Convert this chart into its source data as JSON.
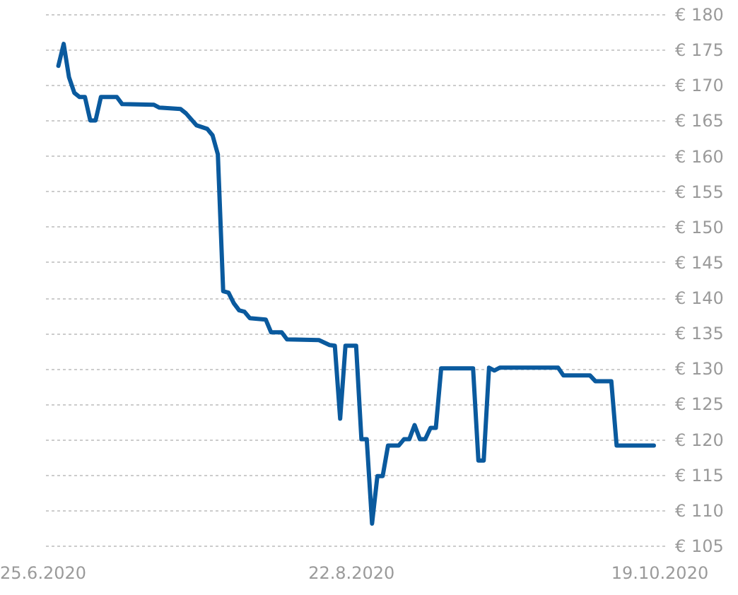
{
  "chart_data": {
    "type": "line",
    "x": [
      "2020-06-28",
      "2020-06-29",
      "2020-06-30",
      "2020-07-01",
      "2020-07-02",
      "2020-07-03",
      "2020-07-04",
      "2020-07-05",
      "2020-07-06",
      "2020-07-09",
      "2020-07-10",
      "2020-07-16",
      "2020-07-17",
      "2020-07-21",
      "2020-07-22",
      "2020-07-24",
      "2020-07-26",
      "2020-07-27",
      "2020-07-28",
      "2020-07-29",
      "2020-07-30",
      "2020-07-31",
      "2020-08-01",
      "2020-08-02",
      "2020-08-03",
      "2020-08-06",
      "2020-08-07",
      "2020-08-09",
      "2020-08-10",
      "2020-08-16",
      "2020-08-18",
      "2020-08-19",
      "2020-08-20",
      "2020-08-21",
      "2020-08-23",
      "2020-08-24",
      "2020-08-25",
      "2020-08-26",
      "2020-08-27",
      "2020-08-28",
      "2020-08-29",
      "2020-08-31",
      "2020-09-01",
      "2020-09-02",
      "2020-09-03",
      "2020-09-04",
      "2020-09-05",
      "2020-09-06",
      "2020-09-07",
      "2020-09-08",
      "2020-09-14",
      "2020-09-15",
      "2020-09-16",
      "2020-09-17",
      "2020-09-18",
      "2020-09-19",
      "2020-09-30",
      "2020-10-01",
      "2020-10-02",
      "2020-10-06",
      "2020-10-07",
      "2020-10-10",
      "2020-10-11",
      "2020-10-18"
    ],
    "series": [
      {
        "color": "#0a5a9e",
        "values": [
          172.7,
          175.8,
          171.1,
          168.9,
          168.3,
          168.3,
          165.0,
          165.0,
          168.3,
          168.3,
          167.3,
          167.2,
          166.8,
          166.6,
          166.0,
          164.3,
          163.8,
          162.9,
          160.2,
          140.9,
          140.7,
          139.2,
          138.2,
          138.0,
          137.1,
          136.9,
          135.1,
          135.1,
          134.1,
          134.0,
          133.3,
          133.2,
          122.9,
          133.2,
          133.2,
          120.0,
          120.0,
          108.1,
          114.8,
          114.8,
          119.1,
          119.1,
          120.0,
          120.0,
          122.0,
          120.0,
          120.0,
          121.6,
          121.6,
          130.0,
          130.0,
          117.0,
          117.0,
          130.1,
          129.7,
          130.1,
          130.1,
          129.0,
          129.0,
          129.0,
          128.2,
          128.2,
          119.1,
          119.1
        ]
      }
    ],
    "xlim": [
      "2020-06-25",
      "2020-10-20"
    ],
    "xticks": [
      {
        "value": "2020-06-25",
        "label": "25.6.2020"
      },
      {
        "value": "2020-08-22",
        "label": "22.8.2020"
      },
      {
        "value": "2020-10-19",
        "label": "19.10.2020"
      }
    ],
    "ylim": [
      105,
      180
    ],
    "yticks": [
      {
        "value": 105,
        "label": "€ 105"
      },
      {
        "value": 110,
        "label": "€ 110"
      },
      {
        "value": 115,
        "label": "€ 115"
      },
      {
        "value": 120,
        "label": "€ 120"
      },
      {
        "value": 125,
        "label": "€ 125"
      },
      {
        "value": 130,
        "label": "€ 130"
      },
      {
        "value": 135,
        "label": "€ 135"
      },
      {
        "value": 140,
        "label": "€ 140"
      },
      {
        "value": 145,
        "label": "€ 145"
      },
      {
        "value": 150,
        "label": "€ 150"
      },
      {
        "value": 155,
        "label": "€ 155"
      },
      {
        "value": 160,
        "label": "€ 160"
      },
      {
        "value": 165,
        "label": "€ 165"
      },
      {
        "value": 170,
        "label": "€ 170"
      },
      {
        "value": 175,
        "label": "€ 175"
      },
      {
        "value": 180,
        "label": "€ 180"
      }
    ],
    "grid": "y",
    "line_style": "solid"
  }
}
